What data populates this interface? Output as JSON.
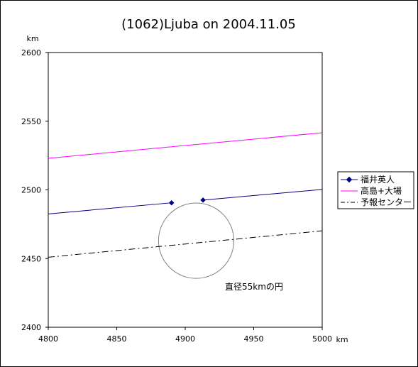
{
  "chart_data": {
    "type": "line",
    "title": "(1062)Ljuba on 2004.11.05",
    "xlabel": "km",
    "ylabel": "km",
    "xlim": [
      4800,
      5000
    ],
    "ylim": [
      2400,
      2600
    ],
    "xticks": [
      "4800",
      "4850",
      "4900",
      "4950",
      "5000"
    ],
    "yticks": [
      "2400",
      "2450",
      "2500",
      "2550",
      "2600"
    ],
    "grid": false,
    "legend_position": "right",
    "series": [
      {
        "name": "福井英人",
        "color": "#000080",
        "style": "solid-with-diamond-markers",
        "segments": [
          [
            [
              4800,
              2482.5
            ],
            [
              4890,
              2490.6
            ]
          ],
          [
            [
              4913,
              2492.6
            ],
            [
              5000,
              2500.3
            ]
          ]
        ],
        "markers": [
          [
            4890,
            2490.6
          ],
          [
            4913,
            2492.6
          ]
        ]
      },
      {
        "name": "高島+大場",
        "color": "#ff00ff",
        "style": "solid",
        "segments": [
          [
            [
              4800,
              2523.0
            ],
            [
              5000,
              2541.6
            ]
          ]
        ],
        "markers": []
      },
      {
        "name": "予報センター",
        "color": "#000000",
        "style": "dash-dot",
        "segments": [
          [
            [
              4800,
              2451.0
            ],
            [
              5000,
              2470.2
            ]
          ]
        ],
        "markers": []
      }
    ],
    "circle": {
      "center_x": 4908,
      "center_y": 2463,
      "diameter": 55,
      "color": "#808080"
    },
    "annotation": "直径55kmの円"
  }
}
